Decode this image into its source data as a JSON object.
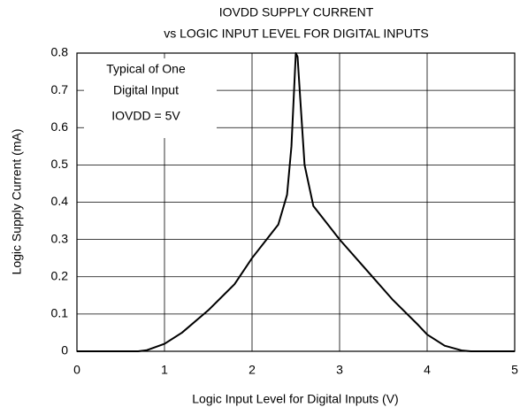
{
  "chart_data": {
    "type": "line",
    "title": [
      "IOVDD SUPPLY CURRENT",
      "vs LOGIC INPUT LEVEL FOR DIGITAL INPUTS"
    ],
    "xlabel": "Logic Input Level for Digital Inputs (V)",
    "ylabel": "Logic Supply Current (mA)",
    "annotations": [
      "Typical of One",
      "Digital Input",
      "IOVDD = 5V"
    ],
    "x": [
      0,
      0.7,
      0.8,
      1.0,
      1.2,
      1.5,
      1.8,
      2.0,
      2.2,
      2.3,
      2.4,
      2.45,
      2.48,
      2.5,
      2.52,
      2.55,
      2.6,
      2.7,
      2.8,
      3.0,
      3.3,
      3.6,
      3.9,
      4.0,
      4.2,
      4.4,
      4.5,
      5
    ],
    "series": [
      {
        "name": "IOVDD",
        "color": "#000000",
        "values": [
          0,
          0,
          0.003,
          0.02,
          0.05,
          0.11,
          0.18,
          0.25,
          0.31,
          0.34,
          0.42,
          0.55,
          0.7,
          0.8,
          0.79,
          0.68,
          0.5,
          0.39,
          0.36,
          0.3,
          0.22,
          0.14,
          0.07,
          0.045,
          0.015,
          0.002,
          0,
          0
        ]
      }
    ],
    "xlim": [
      0,
      5
    ],
    "xticks": [
      0,
      1,
      2,
      3,
      4,
      5
    ],
    "ylim": [
      0,
      0.8
    ],
    "yticks": [
      0,
      0.1,
      0.2,
      0.3,
      0.4,
      0.5,
      0.6,
      0.7,
      0.8
    ],
    "grid": true
  }
}
